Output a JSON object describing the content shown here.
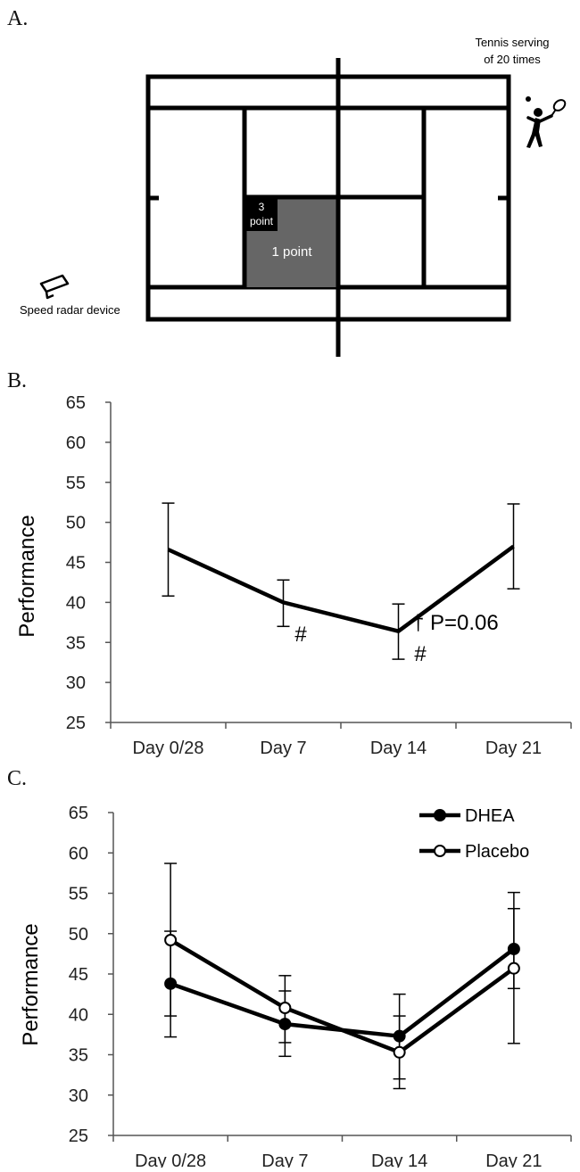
{
  "panel_a": {
    "letter": "A.",
    "server_label_line1": "Tennis serving",
    "server_label_line2": "of 20 times",
    "radar_label": "Speed radar device",
    "three_point_line1": "3",
    "three_point_line2": "point",
    "one_point_label": "1 point",
    "colors": {
      "one_point_zone": "#666666",
      "three_point_zone": "#000000"
    },
    "icons": [
      "tennis-player-icon",
      "speed-radar-icon"
    ]
  },
  "chart_data": [
    {
      "panel": "B.",
      "type": "line",
      "title": "",
      "xlabel": "",
      "ylabel": "Performance",
      "categories": [
        "Day 0/28",
        "Day 7",
        "Day 14",
        "Day 21"
      ],
      "ylim": [
        25,
        65
      ],
      "yticks": [
        25,
        30,
        35,
        40,
        45,
        50,
        55,
        60,
        65
      ],
      "grid": false,
      "series": [
        {
          "values": [
            46.6,
            40.0,
            36.4,
            47.0
          ],
          "error_low": [
            40.8,
            37.0,
            32.9,
            41.7
          ],
          "error_high": [
            52.4,
            42.8,
            39.8,
            52.3
          ]
        }
      ],
      "annotations": [
        {
          "category": "Day 7",
          "text": "#"
        },
        {
          "category": "Day 14",
          "text": "† P=0.06"
        },
        {
          "category": "Day 14",
          "text": "#"
        }
      ]
    },
    {
      "panel": "C.",
      "type": "line",
      "title": "",
      "xlabel": "",
      "ylabel": "Performance",
      "categories": [
        "Day 0/28",
        "Day 7",
        "Day 14",
        "Day 21"
      ],
      "ylim": [
        25,
        65
      ],
      "yticks": [
        25,
        30,
        35,
        40,
        45,
        50,
        55,
        60,
        65
      ],
      "grid": false,
      "legend_position": "top-right",
      "series": [
        {
          "name": "DHEA",
          "marker": "filled-circle",
          "values": [
            43.8,
            38.8,
            37.3,
            48.1
          ],
          "error_low": [
            37.2,
            36.5,
            32.0,
            43.2
          ],
          "error_high": [
            50.3,
            42.9,
            39.8,
            53.1
          ]
        },
        {
          "name": "Placebo",
          "marker": "open-circle",
          "values": [
            49.2,
            40.8,
            35.3,
            45.7
          ],
          "error_low": [
            39.8,
            34.8,
            30.8,
            36.4
          ],
          "error_high": [
            58.7,
            44.8,
            42.5,
            55.1
          ]
        }
      ]
    }
  ]
}
